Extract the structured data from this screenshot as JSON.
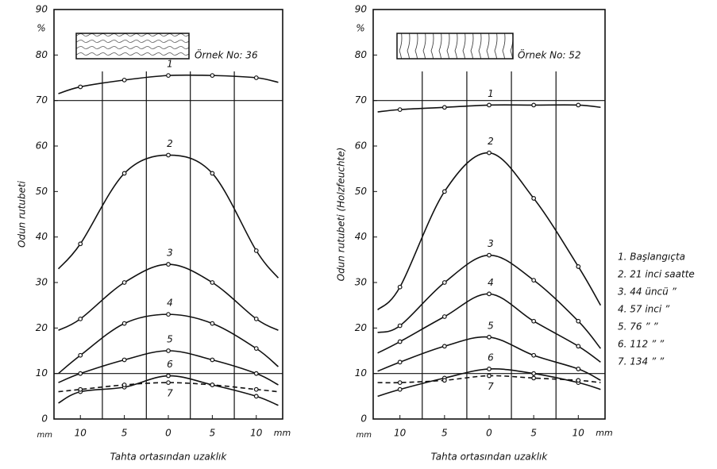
{
  "chart_data": [
    {
      "type": "line",
      "sample_label": "Örnek No: 36",
      "y_unit": "%",
      "ylabel": "Odun rutubeti",
      "xlabel": "Tahta ortasından uzaklık",
      "x_unit": "mm",
      "x": [
        -12.5,
        -10,
        -5,
        0,
        5,
        10,
        12.5
      ],
      "xlim": [
        -13,
        13
      ],
      "ylim": [
        0,
        90
      ],
      "xticks": [
        {
          "value": -10,
          "label": "10"
        },
        {
          "value": -5,
          "label": "5"
        },
        0,
        5,
        10
      ],
      "xgrid": [
        -7.5,
        -2.5,
        2.5,
        7.5
      ],
      "ygrid": [
        10,
        70
      ],
      "yticks": [
        0,
        10,
        20,
        30,
        40,
        50,
        60,
        70,
        80,
        90
      ],
      "series": [
        {
          "name": "1",
          "color": "#111",
          "values": [
            71.5,
            73,
            74.5,
            75.5,
            75.5,
            75,
            74
          ]
        },
        {
          "name": "2",
          "color": "#111",
          "values": [
            33,
            38.5,
            54,
            58,
            54,
            37,
            31
          ]
        },
        {
          "name": "3",
          "color": "#111",
          "values": [
            19.5,
            22,
            30,
            34,
            30,
            22,
            19.5
          ]
        },
        {
          "name": "4",
          "color": "#111",
          "values": [
            10,
            14,
            21,
            23,
            21,
            15.5,
            11.5
          ]
        },
        {
          "name": "5",
          "color": "#111",
          "values": [
            8,
            10,
            13,
            15,
            13,
            10,
            7.5
          ]
        },
        {
          "name": "6",
          "color": "#111",
          "values": [
            3.5,
            6,
            7,
            9.5,
            7.5,
            5,
            3
          ]
        },
        {
          "name": "7",
          "color": "#111",
          "dashed": true,
          "label_below": true,
          "values": [
            6,
            6.5,
            7.5,
            8,
            7.5,
            6.5,
            6
          ]
        }
      ]
    },
    {
      "type": "line",
      "sample_label": "Örnek No: 52",
      "y_unit": "%",
      "ylabel": "Odun rutubeti (Holzfeuchte)",
      "xlabel": "Tahta ortasından uzaklık",
      "x_unit": "mm",
      "x": [
        -12.5,
        -10,
        -5,
        0,
        5,
        10,
        12.5
      ],
      "xlim": [
        -13,
        13
      ],
      "ylim": [
        0,
        90
      ],
      "xticks": [
        {
          "value": -10,
          "label": "10"
        },
        {
          "value": -5,
          "label": "5"
        },
        0,
        5,
        10
      ],
      "xgrid": [
        -7.5,
        -2.5,
        2.5,
        7.5
      ],
      "ygrid": [
        10,
        70
      ],
      "yticks": [
        0,
        10,
        20,
        30,
        40,
        50,
        60,
        70,
        80,
        90
      ],
      "series": [
        {
          "name": "1",
          "color": "#111",
          "values": [
            67.5,
            68,
            68.5,
            69,
            69,
            69,
            68.5
          ]
        },
        {
          "name": "2",
          "color": "#111",
          "values": [
            24,
            29,
            50,
            58.5,
            48.5,
            33.5,
            25
          ]
        },
        {
          "name": "3",
          "color": "#111",
          "values": [
            19,
            20.5,
            30,
            36,
            30.5,
            21.5,
            15.5
          ]
        },
        {
          "name": "4",
          "color": "#111",
          "values": [
            14.5,
            17,
            22.5,
            27.5,
            21.5,
            16,
            12.5
          ]
        },
        {
          "name": "5",
          "color": "#111",
          "values": [
            10.5,
            12.5,
            16,
            18,
            14,
            11,
            8.5
          ]
        },
        {
          "name": "6",
          "color": "#111",
          "values": [
            5,
            6.5,
            9,
            11,
            10,
            8,
            6.5
          ]
        },
        {
          "name": "7",
          "color": "#111",
          "dashed": true,
          "label_below": true,
          "values": [
            8,
            8,
            8.5,
            9.5,
            9,
            8.5,
            8
          ]
        }
      ],
      "legend_notes": [
        "1. Başlangıçta",
        "2. 21 inci saatte",
        "3. 44 üncü ”",
        "4. 57 inci ”",
        "5. 76 ” ”",
        "6. 112 ” ”",
        "7. 134 ” ”"
      ]
    }
  ]
}
